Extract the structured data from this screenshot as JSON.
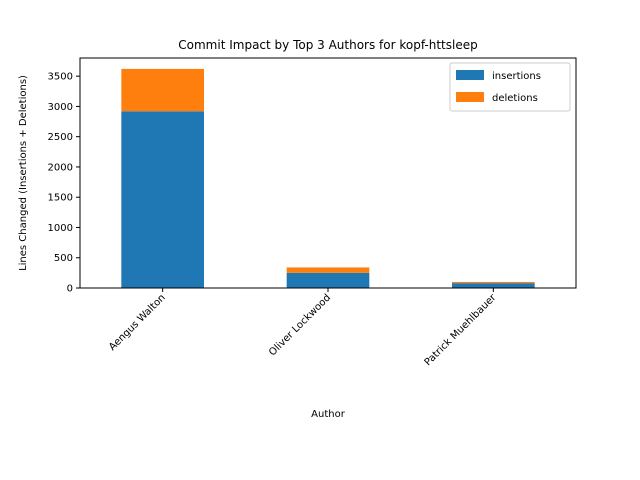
{
  "chart_data": {
    "type": "bar",
    "stacked": true,
    "title": "Commit Impact by Top 3 Authors for kopf-httsleep",
    "xlabel": "Author",
    "ylabel": "Lines Changed (Insertions + Deletions)",
    "categories": [
      "Aengus Walton",
      "Oliver Lockwood",
      "Patrick Muehlbauer"
    ],
    "series": [
      {
        "name": "insertions",
        "values": [
          2920,
          250,
          80
        ],
        "color": "#1f77b4"
      },
      {
        "name": "deletions",
        "values": [
          700,
          90,
          20
        ],
        "color": "#ff7f0e"
      }
    ],
    "ylim": [
      0,
      3800
    ],
    "yticks": [
      0,
      500,
      1000,
      1500,
      2000,
      2500,
      3000,
      3500
    ],
    "grid": false,
    "legend_position": "top-right"
  }
}
